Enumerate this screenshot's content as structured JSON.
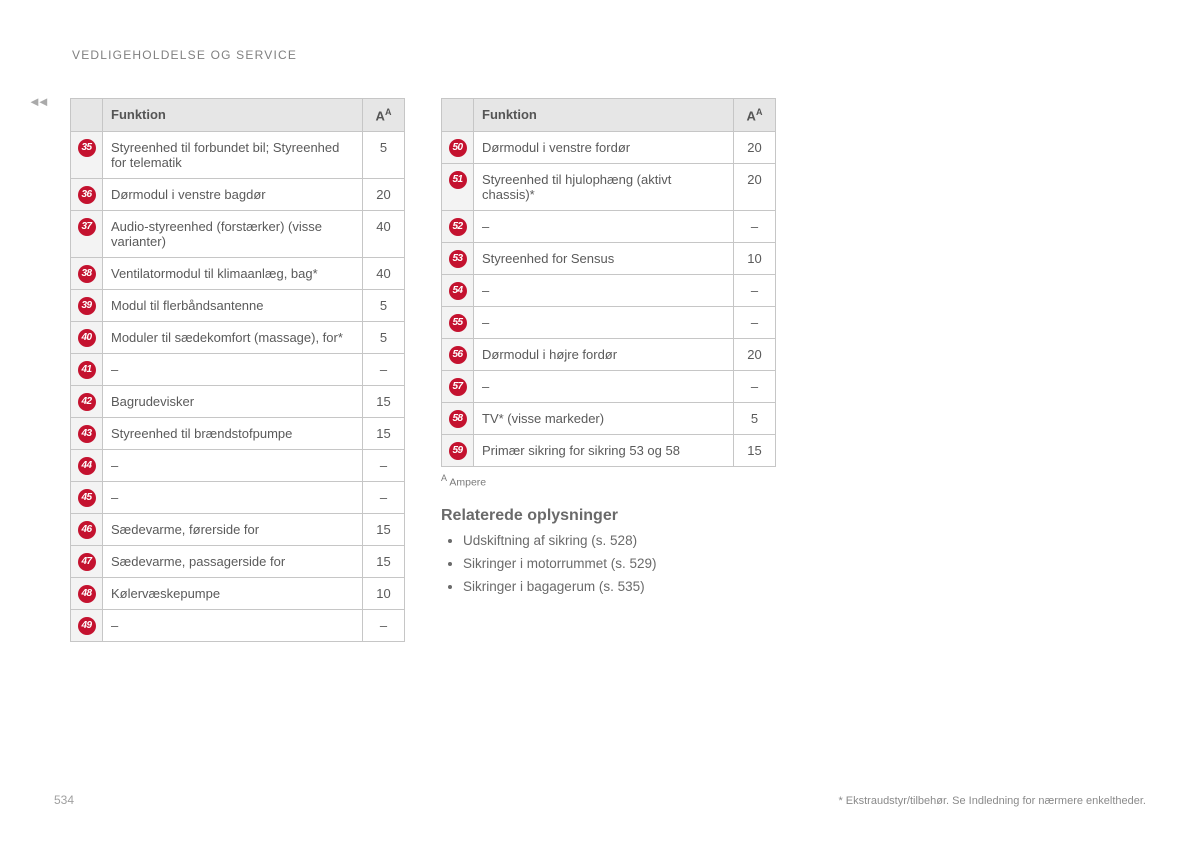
{
  "section_header": "VEDLIGEHOLDELSE OG SERVICE",
  "continued_marker": "◄◄",
  "table_headers": {
    "function": "Funktion",
    "amp": "A",
    "amp_sup": "A"
  },
  "left_rows": [
    {
      "n": "35",
      "f": "Styreenhed til forbundet bil; Styreenhed for telematik",
      "a": "5"
    },
    {
      "n": "36",
      "f": "Dørmodul i venstre bagdør",
      "a": "20"
    },
    {
      "n": "37",
      "f": "Audio-styreenhed (forstærker) (visse varianter)",
      "a": "40"
    },
    {
      "n": "38",
      "f": "Ventilatormodul til klimaanlæg, bag*",
      "a": "40"
    },
    {
      "n": "39",
      "f": "Modul til flerbåndsantenne",
      "a": "5"
    },
    {
      "n": "40",
      "f": "Moduler til sædekomfort (massage), for*",
      "a": "5"
    },
    {
      "n": "41",
      "f": "–",
      "a": "–"
    },
    {
      "n": "42",
      "f": "Bagrudevisker",
      "a": "15"
    },
    {
      "n": "43",
      "f": "Styreenhed til brændstofpumpe",
      "a": "15"
    },
    {
      "n": "44",
      "f": "–",
      "a": "–"
    },
    {
      "n": "45",
      "f": "–",
      "a": "–"
    },
    {
      "n": "46",
      "f": "Sædevarme, førerside for",
      "a": "15"
    },
    {
      "n": "47",
      "f": "Sædevarme, passagerside for",
      "a": "15"
    },
    {
      "n": "48",
      "f": "Kølervæskepumpe",
      "a": "10"
    },
    {
      "n": "49",
      "f": "–",
      "a": "–"
    }
  ],
  "right_rows": [
    {
      "n": "50",
      "f": "Dørmodul i venstre fordør",
      "a": "20"
    },
    {
      "n": "51",
      "f": "Styreenhed til hjulophæng (aktivt chassis)*",
      "a": "20"
    },
    {
      "n": "52",
      "f": "–",
      "a": "–"
    },
    {
      "n": "53",
      "f": "Styreenhed for Sensus",
      "a": "10"
    },
    {
      "n": "54",
      "f": "–",
      "a": "–"
    },
    {
      "n": "55",
      "f": "–",
      "a": "–"
    },
    {
      "n": "56",
      "f": "Dørmodul i højre fordør",
      "a": "20"
    },
    {
      "n": "57",
      "f": "–",
      "a": "–"
    },
    {
      "n": "58",
      "f": "TV* (visse markeder)",
      "a": "5"
    },
    {
      "n": "59",
      "f": "Primær sikring for sikring 53 og 58",
      "a": "15"
    }
  ],
  "footnote_a": {
    "sup": "A",
    "text": "Ampere"
  },
  "related": {
    "title": "Relaterede oplysninger",
    "items": [
      "Udskiftning af sikring (s. 528)",
      "Sikringer i motorrummet (s. 529)",
      "Sikringer i bagagerum (s. 535)"
    ]
  },
  "page_number": "534",
  "foot_right": "* Ekstraudstyr/tilbehør. Se Indledning for nærmere enkeltheder."
}
